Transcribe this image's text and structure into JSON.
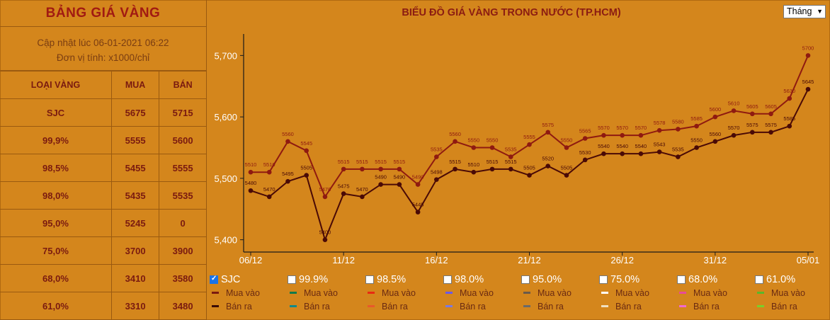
{
  "table": {
    "title": "BẢNG GIÁ VÀNG",
    "update_line1": "Cập nhật lúc 06-01-2021 06:22",
    "update_line2": "Đơn vị tính: x1000/chỉ",
    "headers": [
      "LOẠI VÀNG",
      "MUA",
      "BÁN"
    ],
    "rows": [
      [
        "SJC",
        "5675",
        "5715"
      ],
      [
        "99,9%",
        "5555",
        "5600"
      ],
      [
        "98,5%",
        "5455",
        "5555"
      ],
      [
        "98,0%",
        "5435",
        "5535"
      ],
      [
        "95,0%",
        "5245",
        "0"
      ],
      [
        "75,0%",
        "3700",
        "3900"
      ],
      [
        "68,0%",
        "3410",
        "3580"
      ],
      [
        "61,0%",
        "3310",
        "3480"
      ]
    ]
  },
  "period_select": {
    "value": "Tháng"
  },
  "chart_data": {
    "type": "line",
    "title": "BIỂU ĐỒ GIÁ VÀNG TRONG NƯỚC (TP.HCM)",
    "ylim": [
      5380,
      5735
    ],
    "y_ticks": [
      5400,
      5500,
      5600,
      5700
    ],
    "y_tick_labels": [
      "5,400",
      "5,500",
      "5,600",
      "5,700"
    ],
    "x_ticks": [
      {
        "index": 0,
        "label": "06/12"
      },
      {
        "index": 5,
        "label": "11/12"
      },
      {
        "index": 10,
        "label": "16/12"
      },
      {
        "index": 15,
        "label": "21/12"
      },
      {
        "index": 20,
        "label": "26/12"
      },
      {
        "index": 25,
        "label": "31/12"
      },
      {
        "index": 30,
        "label": "05/01"
      }
    ],
    "series": [
      {
        "name": "Bán ra",
        "color": "#8f1a10",
        "values": [
          5510,
          5510,
          5560,
          5545,
          5470,
          5515,
          5515,
          5515,
          5515,
          5490,
          5535,
          5560,
          5550,
          5550,
          5535,
          5555,
          5575,
          5550,
          5565,
          5570,
          5570,
          5570,
          5578,
          5580,
          5585,
          5600,
          5610,
          5605,
          5605,
          5630,
          5700
        ]
      },
      {
        "name": "Mua vào",
        "color": "#4a0a06",
        "values": [
          5480,
          5470,
          5495,
          5505,
          5400,
          5475,
          5470,
          5490,
          5490,
          5445,
          5498,
          5515,
          5510,
          5515,
          5515,
          5505,
          5520,
          5505,
          5530,
          5540,
          5540,
          5540,
          5543,
          5535,
          5550,
          5560,
          5570,
          5575,
          5575,
          5585,
          5645
        ]
      }
    ]
  },
  "legend": [
    {
      "label": "SJC",
      "checked": true,
      "buy_label": "Mua vào",
      "sell_label": "Bán ra",
      "buy_color": "#7a1a10",
      "sell_color": "#3a0a06"
    },
    {
      "label": "99.9%",
      "checked": false,
      "buy_label": "Mua vào",
      "sell_label": "Bán ra",
      "buy_color": "#127a4a",
      "sell_color": "#128a8a"
    },
    {
      "label": "98.5%",
      "checked": false,
      "buy_label": "Mua vào",
      "sell_label": "Bán ra",
      "buy_color": "#e82a12",
      "sell_color": "#e85a2a"
    },
    {
      "label": "98.0%",
      "checked": false,
      "buy_label": "Mua vào",
      "sell_label": "Bán ra",
      "buy_color": "#6a5ae8",
      "sell_color": "#7a7ae0"
    },
    {
      "label": "95.0%",
      "checked": false,
      "buy_label": "Mua vào",
      "sell_label": "Bán ra",
      "buy_color": "#6a5a4a",
      "sell_color": "#6a6a6a"
    },
    {
      "label": "75.0%",
      "checked": false,
      "buy_label": "Mua vào",
      "sell_label": "Bán ra",
      "buy_color": "#ffffff",
      "sell_color": "#f0e0c0"
    },
    {
      "label": "68.0%",
      "checked": false,
      "buy_label": "Mua vào",
      "sell_label": "Bán ra",
      "buy_color": "#e84a9a",
      "sell_color": "#f06ad0"
    },
    {
      "label": "61.0%",
      "checked": false,
      "buy_label": "Mua vào",
      "sell_label": "Bán ra",
      "buy_color": "#5ab82a",
      "sell_color": "#7ad02a"
    }
  ]
}
